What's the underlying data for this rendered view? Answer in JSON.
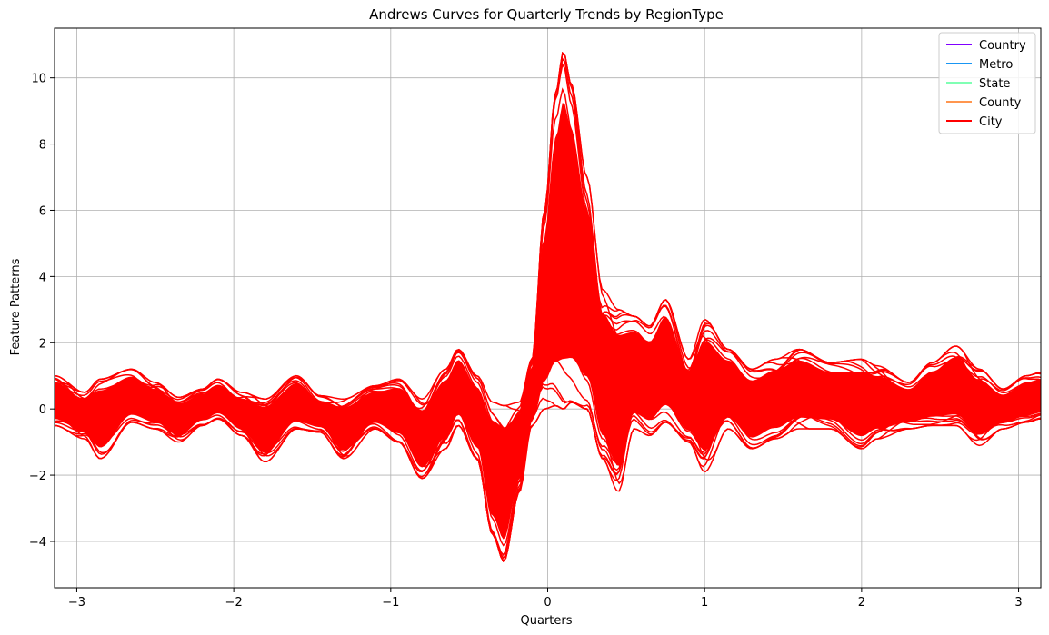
{
  "chart_data": {
    "type": "line",
    "subtype": "andrews-curves",
    "title": "Andrews Curves for Quarterly Trends by RegionType",
    "xlabel": "Quarters",
    "ylabel": "Feature Patterns",
    "xlim": [
      -3.1416,
      3.1416
    ],
    "ylim": [
      -5.4,
      11.5
    ],
    "xticks": [
      -3,
      -2,
      -1,
      0,
      1,
      2,
      3
    ],
    "xtick_labels": [
      "−3",
      "−2",
      "−1",
      "0",
      "1",
      "2",
      "3"
    ],
    "yticks": [
      -4,
      -2,
      0,
      2,
      4,
      6,
      8,
      10
    ],
    "ytick_labels": [
      "−4",
      "−2",
      "0",
      "2",
      "4",
      "6",
      "8",
      "10"
    ],
    "grid": true,
    "legend_position": "top-right",
    "legend": [
      {
        "name": "Country",
        "color": "#8000ff"
      },
      {
        "name": "Metro",
        "color": "#1996f3"
      },
      {
        "name": "State",
        "color": "#80ffb4"
      },
      {
        "name": "County",
        "color": "#ff964f"
      },
      {
        "name": "City",
        "color": "#ff0000"
      }
    ],
    "curve_color": "#ff0000",
    "envelope": {
      "x": [
        -3.14,
        -2.95,
        -2.85,
        -2.65,
        -2.5,
        -2.35,
        -2.2,
        -2.1,
        -1.95,
        -1.8,
        -1.6,
        -1.45,
        -1.3,
        -1.1,
        -0.95,
        -0.8,
        -0.65,
        -0.57,
        -0.45,
        -0.35,
        -0.28,
        -0.18,
        -0.1,
        -0.02,
        0.05,
        0.1,
        0.15,
        0.25,
        0.35,
        0.45,
        0.55,
        0.65,
        0.75,
        0.9,
        1.0,
        1.15,
        1.3,
        1.45,
        1.6,
        1.8,
        2.0,
        2.1,
        2.3,
        2.45,
        2.6,
        2.75,
        2.9,
        3.05,
        3.14
      ],
      "upper": [
        1.0,
        0.5,
        0.9,
        1.2,
        0.8,
        0.35,
        0.6,
        0.9,
        0.5,
        0.3,
        1.0,
        0.4,
        0.3,
        0.7,
        0.9,
        0.3,
        1.2,
        1.8,
        1.0,
        0.2,
        0.1,
        0.2,
        1.5,
        6.0,
        9.5,
        10.8,
        9.8,
        7.0,
        3.6,
        3.0,
        2.8,
        2.5,
        3.3,
        1.5,
        2.7,
        1.8,
        1.2,
        1.5,
        1.8,
        1.4,
        1.5,
        1.3,
        0.8,
        1.4,
        1.9,
        1.2,
        0.6,
        1.0,
        1.1
      ],
      "lower": [
        -0.5,
        -0.9,
        -1.5,
        -0.4,
        -0.6,
        -1.0,
        -0.5,
        -0.3,
        -0.8,
        -1.6,
        -0.6,
        -0.7,
        -1.5,
        -0.6,
        -1.0,
        -2.1,
        -1.2,
        -0.5,
        -1.5,
        -3.8,
        -4.6,
        -2.5,
        -0.5,
        0.0,
        0.1,
        0.0,
        0.2,
        0.0,
        -1.5,
        -2.5,
        -0.6,
        -0.8,
        -0.4,
        -1.0,
        -1.9,
        -0.6,
        -1.2,
        -0.9,
        -0.6,
        -0.6,
        -1.2,
        -0.9,
        -0.6,
        -0.5,
        -0.5,
        -1.1,
        -0.6,
        -0.4,
        -0.3
      ]
    }
  }
}
